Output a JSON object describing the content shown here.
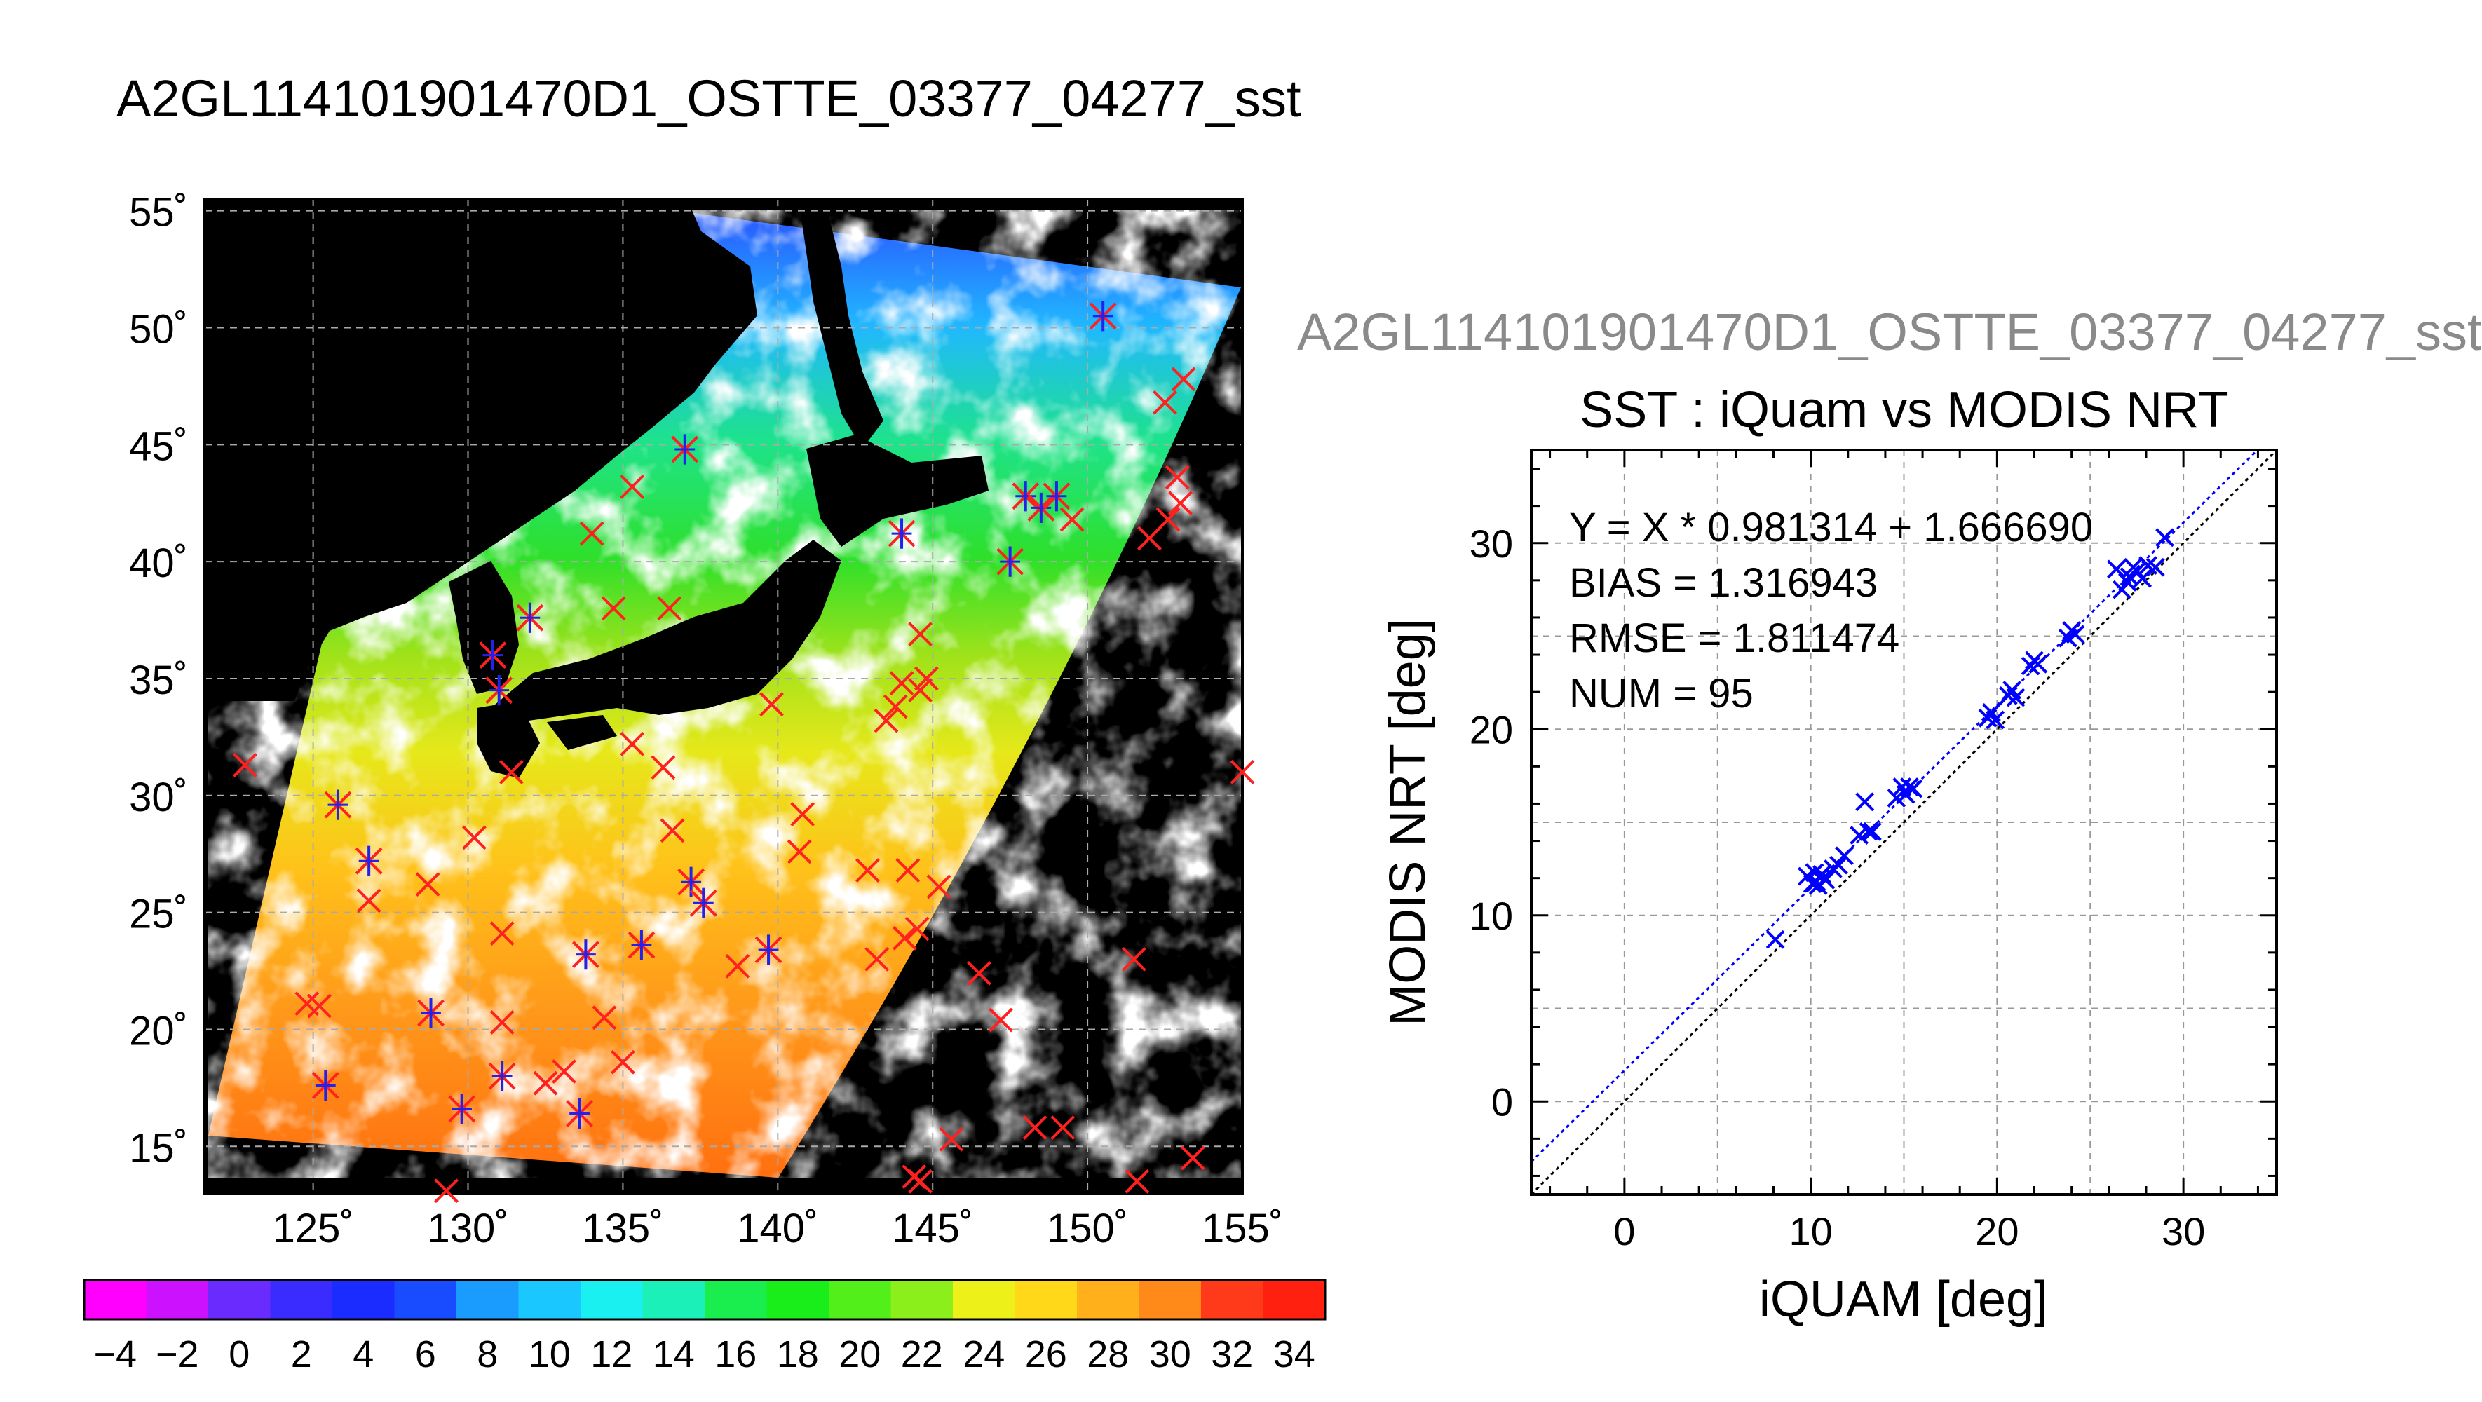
{
  "figure_title": "A2GL114101901470D1_OSTTE_03377_04277_sst",
  "scatter_header": "A2GL114101901470D1_OSTTE_03377_04277_sst",
  "colors": {
    "ocean_mask": "#000000",
    "cloud": "#ffffff",
    "match_marker_blue": "#2222ee",
    "match_marker_red": "#ff2020",
    "fit_line": "#0000ff",
    "one_to_one_line": "#000000"
  },
  "map": {
    "lat_ticks": [
      "55˚",
      "50˚",
      "45˚",
      "40˚",
      "35˚",
      "30˚",
      "25˚",
      "20˚",
      "15˚"
    ],
    "lon_ticks": [
      "125˚",
      "130˚",
      "135˚",
      "140˚",
      "145˚",
      "150˚",
      "155˚"
    ],
    "colorbar_ticks": [
      "−4",
      "−2",
      "0",
      "2",
      "4",
      "6",
      "8",
      "10",
      "12",
      "14",
      "16",
      "18",
      "20",
      "22",
      "24",
      "26",
      "28",
      "30",
      "32",
      "34"
    ],
    "colorbar_range": [
      -5,
      35
    ]
  },
  "chart_data": [
    {
      "type": "heatmap",
      "title": "",
      "xlabel": "",
      "ylabel": "",
      "lon_range": [
        121.5,
        155
      ],
      "lat_range": [
        13,
        55.5
      ],
      "grid": true,
      "value_range": [
        -5,
        35
      ],
      "approx_sst_by_lat": [
        [
          50,
          6
        ],
        [
          45,
          14
        ],
        [
          40,
          18
        ],
        [
          35,
          22
        ],
        [
          30,
          26
        ],
        [
          25,
          28
        ],
        [
          20,
          29
        ],
        [
          15,
          31
        ]
      ],
      "satellite_matches": [
        {
          "lon": 150.5,
          "lat": 50.5
        },
        {
          "lon": 137,
          "lat": 44.8
        },
        {
          "lon": 144,
          "lat": 41.2
        },
        {
          "lon": 148,
          "lat": 42.8
        },
        {
          "lon": 148.5,
          "lat": 42.3
        },
        {
          "lon": 149,
          "lat": 42.8
        },
        {
          "lon": 147.5,
          "lat": 40
        },
        {
          "lon": 132,
          "lat": 37.6
        },
        {
          "lon": 130.8,
          "lat": 36
        },
        {
          "lon": 131,
          "lat": 34.5
        },
        {
          "lon": 125.8,
          "lat": 29.6
        },
        {
          "lon": 126.8,
          "lat": 27.2
        },
        {
          "lon": 137.2,
          "lat": 26.3
        },
        {
          "lon": 137.6,
          "lat": 25.4
        },
        {
          "lon": 133.8,
          "lat": 23.2
        },
        {
          "lon": 135.6,
          "lat": 23.6
        },
        {
          "lon": 139.7,
          "lat": 23.4
        },
        {
          "lon": 128.8,
          "lat": 20.7
        },
        {
          "lon": 125.4,
          "lat": 17.6
        },
        {
          "lon": 129.8,
          "lat": 16.6
        },
        {
          "lon": 131.1,
          "lat": 18
        },
        {
          "lon": 133.6,
          "lat": 16.4
        }
      ],
      "out_of_swath_matches": [
        {
          "lon": 122.8,
          "lat": 31.3
        },
        {
          "lon": 135.3,
          "lat": 43.2
        },
        {
          "lon": 134,
          "lat": 41.2
        },
        {
          "lon": 134.7,
          "lat": 38
        },
        {
          "lon": 136.5,
          "lat": 38
        },
        {
          "lon": 139.8,
          "lat": 33.9
        },
        {
          "lon": 135.3,
          "lat": 32.2
        },
        {
          "lon": 136.3,
          "lat": 31.2
        },
        {
          "lon": 131.4,
          "lat": 31
        },
        {
          "lon": 130.2,
          "lat": 28.2
        },
        {
          "lon": 136.6,
          "lat": 28.5
        },
        {
          "lon": 140.8,
          "lat": 29.2
        },
        {
          "lon": 140.7,
          "lat": 27.6
        },
        {
          "lon": 126.8,
          "lat": 25.5
        },
        {
          "lon": 128.7,
          "lat": 26.2
        },
        {
          "lon": 131.1,
          "lat": 24.1
        },
        {
          "lon": 138.7,
          "lat": 22.7
        },
        {
          "lon": 124.8,
          "lat": 21.1
        },
        {
          "lon": 125.2,
          "lat": 21
        },
        {
          "lon": 131.1,
          "lat": 20.3
        },
        {
          "lon": 134.4,
          "lat": 20.5
        },
        {
          "lon": 132.5,
          "lat": 17.7
        },
        {
          "lon": 133.1,
          "lat": 18.2
        },
        {
          "lon": 135,
          "lat": 18.6
        },
        {
          "lon": 129.3,
          "lat": 13.1
        },
        {
          "lon": 144.6,
          "lat": 36.9
        },
        {
          "lon": 144,
          "lat": 34.8
        },
        {
          "lon": 143.8,
          "lat": 33.8
        },
        {
          "lon": 143.5,
          "lat": 33.2
        },
        {
          "lon": 144.6,
          "lat": 34.5
        },
        {
          "lon": 144.8,
          "lat": 35
        },
        {
          "lon": 142.9,
          "lat": 26.8
        },
        {
          "lon": 144.2,
          "lat": 26.8
        },
        {
          "lon": 144.5,
          "lat": 24.3
        },
        {
          "lon": 145.2,
          "lat": 26.1
        },
        {
          "lon": 143.2,
          "lat": 23
        },
        {
          "lon": 144.1,
          "lat": 23.9
        },
        {
          "lon": 146.5,
          "lat": 22.4
        },
        {
          "lon": 147.2,
          "lat": 20.4
        },
        {
          "lon": 145.6,
          "lat": 15.3
        },
        {
          "lon": 144.4,
          "lat": 13.7
        },
        {
          "lon": 144.6,
          "lat": 13.5
        },
        {
          "lon": 148.3,
          "lat": 15.8
        },
        {
          "lon": 149.2,
          "lat": 15.8
        },
        {
          "lon": 151.6,
          "lat": 13.5
        },
        {
          "lon": 153.4,
          "lat": 14.5
        },
        {
          "lon": 151.5,
          "lat": 23
        },
        {
          "lon": 149.5,
          "lat": 41.8
        },
        {
          "lon": 152,
          "lat": 41
        },
        {
          "lon": 152.6,
          "lat": 41.8
        },
        {
          "lon": 153,
          "lat": 42.5
        },
        {
          "lon": 152.9,
          "lat": 43.6
        },
        {
          "lon": 152.5,
          "lat": 46.8
        },
        {
          "lon": 153.1,
          "lat": 47.8
        },
        {
          "lon": 155,
          "lat": 31
        }
      ]
    },
    {
      "type": "scatter",
      "title": "SST : iQuam vs MODIS NRT",
      "xlabel": "iQUAM [deg]",
      "ylabel": "MODIS NRT [deg]",
      "xlim": [
        -5,
        35
      ],
      "ylim": [
        -5,
        35
      ],
      "x_ticks": [
        "0",
        "10",
        "20",
        "30"
      ],
      "y_ticks": [
        "0",
        "10",
        "20",
        "30"
      ],
      "grid": true,
      "annotations": [
        "Y = X * 0.981314 + 1.666690",
        "BIAS = 1.316943",
        "RMSE = 1.811474",
        "NUM = 95"
      ],
      "fit": {
        "slope": 0.981314,
        "intercept": 1.66669
      },
      "x": [
        8.1,
        9.8,
        10.1,
        10.2,
        10.3,
        10.4,
        10.6,
        10.8,
        11.2,
        11.5,
        11.8,
        12.6,
        12.9,
        13.1,
        13.3,
        14.6,
        14.9,
        15.1,
        15.3,
        15.5,
        19.5,
        19.7,
        19.9,
        20.6,
        20.8,
        21,
        21.8,
        22,
        22.2,
        23.8,
        24,
        24.2,
        26.4,
        26.7,
        27,
        27.1,
        27.3,
        27.5,
        27.8,
        28.1,
        28.5,
        29
      ],
      "y": [
        8.7,
        12.1,
        11.7,
        12.3,
        11.8,
        11.6,
        12.2,
        11.9,
        12.5,
        12.7,
        13.2,
        14.3,
        16.1,
        14.5,
        14.5,
        16.3,
        16.9,
        16.5,
        16.9,
        16.8,
        20.6,
        20.9,
        20.5,
        21.8,
        22.1,
        21.7,
        23.4,
        23.7,
        23.5,
        24.9,
        25.3,
        25.1,
        28.6,
        27.5,
        27.9,
        28.2,
        28.7,
        28.5,
        28.1,
        28.8,
        28.7,
        30.3
      ]
    }
  ]
}
